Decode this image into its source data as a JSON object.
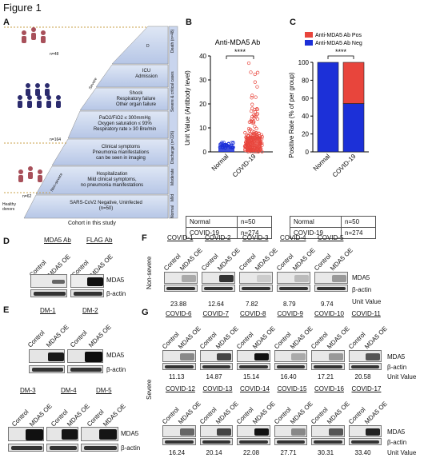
{
  "figure_title": "Figure 1",
  "panel_labels": {
    "a": "A",
    "b": "B",
    "c": "C",
    "d": "D",
    "e": "E",
    "f": "F",
    "g": "G"
  },
  "panel_a": {
    "counts": [
      "n=48",
      "n=164",
      "n=62"
    ],
    "donor_label": [
      "Healthy",
      "donors"
    ],
    "nonsevere_label": "Non-severe",
    "severe_label": "Severe",
    "tiers": [
      {
        "text": [
          "D"
        ]
      },
      {
        "text": [
          "ICU",
          "Admission"
        ]
      },
      {
        "text": [
          "Shock",
          "Respiratory failure",
          "Other organ failure"
        ]
      },
      {
        "text": [
          "PaO2/FiO2 ≤ 300mmHg",
          "Oxygen saturation ≤ 93%",
          "Respiratory rate ≥ 30 Bre/min"
        ]
      },
      {
        "text": [
          "Clinical symptoms",
          "Pneumonia manifestations",
          "can be seen in imaging"
        ]
      },
      {
        "text": [
          "Hospitalization",
          "Mild clinical symptoms,",
          "no pneumonia manifestations"
        ]
      },
      {
        "text": [
          "SARS-CoV2 Negative, Uninfected",
          "(n=50)"
        ]
      }
    ],
    "side_labels": [
      "Death (n=48)",
      "Severe & critical cases",
      "Discharge (n=226)",
      "Moderate",
      "Mild",
      "Normal"
    ],
    "caption": "Cohort in this study"
  },
  "chart_data": [
    {
      "type": "scatter",
      "title": "Anti-MDA5 Ab",
      "ylabel": "Unit Value (Antibody level)",
      "categories": [
        "Normal",
        "COVID-19"
      ],
      "ylim": [
        0,
        40
      ],
      "yticks": [
        "0",
        "10",
        "20",
        "30",
        "40"
      ],
      "bar_means": [
        2.5,
        6.5
      ],
      "significance": "****",
      "table": [
        [
          "Normal",
          "n=50"
        ],
        [
          "COVID-19",
          "n=274"
        ]
      ]
    },
    {
      "type": "bar",
      "ylabel": "Positive Rate (% of per group)",
      "categories": [
        "Normal",
        "COVID-19"
      ],
      "ylim": [
        0,
        100
      ],
      "yticks": [
        "0",
        "20",
        "40",
        "60",
        "80",
        "100"
      ],
      "series": [
        {
          "name": "Anti-MDA5 Ab Pos",
          "values": [
            0,
            46
          ]
        },
        {
          "name": "Anti-MDA5 Ab Neg",
          "values": [
            100,
            54
          ]
        }
      ],
      "colors": {
        "pos": "#e8453c",
        "neg": "#1c30d8"
      },
      "significance": "****",
      "table": [
        [
          "Normal",
          "n=50"
        ],
        [
          "COVID-19",
          "n=274"
        ]
      ]
    }
  ],
  "panel_d": {
    "groups": [
      "MDA5 Ab",
      "FLAG Ab"
    ],
    "lanes": [
      "Control",
      "MDA5 OE"
    ],
    "bands": [
      "MDA5",
      "β-actin"
    ]
  },
  "panel_e": {
    "top_groups": [
      "DM-1",
      "DM-2"
    ],
    "bottom_groups": [
      "DM-3",
      "DM-4",
      "DM-5"
    ],
    "lanes": [
      "Control",
      "MDA5 OE"
    ],
    "bands": [
      "MDA5",
      "β-actin"
    ]
  },
  "panel_f": {
    "side_label": "Non-severe",
    "groups": [
      "COVID-1",
      "COVID-2",
      "COVID-3",
      "COVID-4",
      "COVID-5"
    ],
    "lanes": [
      "Control",
      "MDA5 OE"
    ],
    "bands": [
      "MDA5",
      "β-actin"
    ],
    "values": [
      "23.88",
      "12.64",
      "7.82",
      "8.79",
      "9.74"
    ],
    "unit_label": "Unit Value"
  },
  "panel_g": {
    "side_label": "Severe",
    "row1_groups": [
      "COVID-6",
      "COVID-7",
      "COVID-8",
      "COVID-9",
      "COVID-10",
      "COVID-11"
    ],
    "row1_values": [
      "11.13",
      "14.87",
      "15.14",
      "16.40",
      "17.21",
      "20.58"
    ],
    "row2_groups": [
      "COVID-12",
      "COVID-13",
      "COVID-14",
      "COVID-15",
      "COVID-16",
      "COVID-17"
    ],
    "row2_values": [
      "16.24",
      "20.14",
      "22.08",
      "27.71",
      "30.31",
      "33.40"
    ],
    "lanes": [
      "Control",
      "MDA5 OE"
    ],
    "bands": [
      "MDA5",
      "β-actin"
    ],
    "unit_label": "Unit Value"
  }
}
